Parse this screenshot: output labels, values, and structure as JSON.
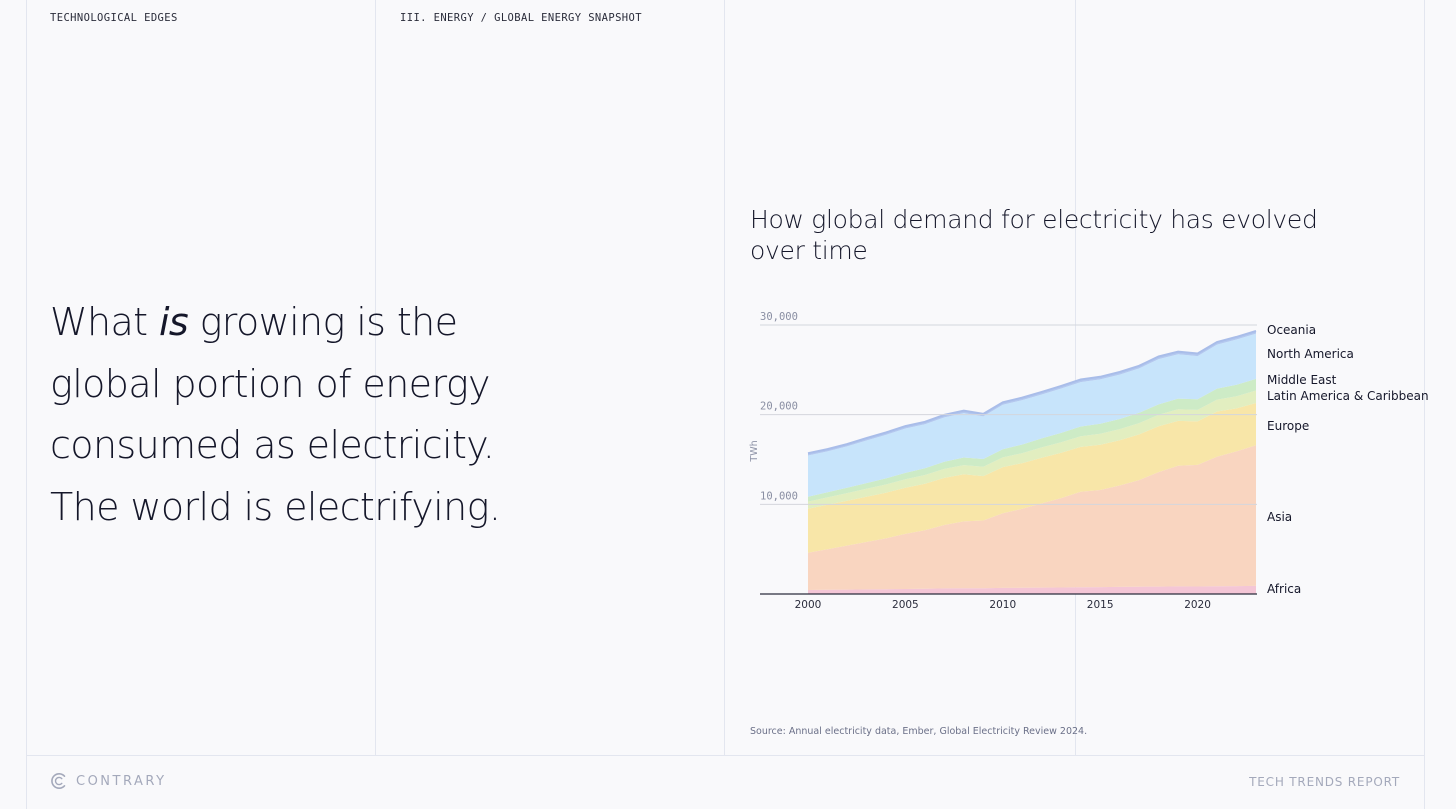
{
  "header": {
    "left": "TECHNOLOGICAL EDGES",
    "section": "III. ENERGY / GLOBAL ENERGY SNAPSHOT"
  },
  "headline": {
    "part1": "What ",
    "emph": "is",
    "part2": " growing is the global portion of energy consumed as electricity. The world is electrifying."
  },
  "source": "Source: Annual electricity data, Ember, Global Electricity Review 2024.",
  "footer": {
    "brand": "CONTRARY",
    "report": "TECH TRENDS REPORT"
  },
  "colors": {
    "background": "#f9f9fb",
    "text": "#15172a",
    "gridline": "#e3e6ef"
  },
  "chart_data": {
    "type": "area",
    "stacked": true,
    "title": "How global demand for electricity has evolved over time",
    "ylabel": "TWh",
    "xlabel": "",
    "ylim": [
      0,
      30000
    ],
    "xlim": [
      2000,
      2023
    ],
    "yticks": [
      10000,
      20000,
      30000
    ],
    "ytick_labels": [
      "10,000",
      "20,000",
      "30,000"
    ],
    "xticks": [
      2000,
      2005,
      2010,
      2015,
      2020
    ],
    "xtick_labels": [
      "2000",
      "2005",
      "2010",
      "2015",
      "2020"
    ],
    "grid": true,
    "legend": "right-end labels",
    "x": [
      2000,
      2001,
      2002,
      2003,
      2004,
      2005,
      2006,
      2007,
      2008,
      2009,
      2010,
      2011,
      2012,
      2013,
      2014,
      2015,
      2016,
      2017,
      2018,
      2019,
      2020,
      2021,
      2022,
      2023
    ],
    "series": [
      {
        "name": "Africa",
        "color": "#f4c6d6",
        "values": [
          450,
          470,
          490,
          510,
          540,
          560,
          590,
          620,
          640,
          640,
          680,
          690,
          710,
          730,
          750,
          770,
          790,
          810,
          830,
          850,
          840,
          870,
          880,
          900
        ]
      },
      {
        "name": "Asia",
        "color": "#f9d5c0",
        "values": [
          4150,
          4530,
          4910,
          5290,
          5660,
          6140,
          6510,
          7080,
          7460,
          7560,
          8320,
          8810,
          9390,
          9970,
          10650,
          10830,
          11310,
          11890,
          12770,
          13450,
          13560,
          14430,
          15020,
          15700
        ]
      },
      {
        "name": "Europe",
        "color": "#f8e6a8",
        "values": [
          4900,
          4950,
          5000,
          5050,
          5100,
          5150,
          5200,
          5250,
          5250,
          4950,
          5150,
          5100,
          5100,
          5050,
          5000,
          5050,
          5050,
          5100,
          5100,
          5000,
          4850,
          5050,
          4800,
          4700
        ]
      },
      {
        "name": "Latin America & Caribbean",
        "color": "#e2eec0",
        "values": [
          800,
          820,
          850,
          880,
          910,
          940,
          970,
          1000,
          1030,
          1040,
          1080,
          1110,
          1150,
          1180,
          1200,
          1220,
          1240,
          1260,
          1280,
          1300,
          1280,
          1330,
          1360,
          1390
        ]
      },
      {
        "name": "Middle East",
        "color": "#cdebc6",
        "values": [
          550,
          580,
          610,
          640,
          680,
          720,
          760,
          800,
          840,
          870,
          920,
          960,
          1000,
          1040,
          1080,
          1110,
          1130,
          1150,
          1170,
          1190,
          1200,
          1230,
          1270,
          1300
        ]
      },
      {
        "name": "North America",
        "color": "#c7e4fb",
        "values": [
          4600,
          4550,
          4600,
          4750,
          4850,
          4950,
          4900,
          4950,
          4950,
          4750,
          4950,
          4950,
          4900,
          4950,
          4950,
          4950,
          4950,
          4950,
          5050,
          4950,
          4800,
          4900,
          5050,
          5050
        ]
      },
      {
        "name": "Oceania",
        "color": "#b3c8ef",
        "values": [
          250,
          255,
          260,
          265,
          268,
          270,
          272,
          275,
          278,
          280,
          282,
          284,
          285,
          285,
          287,
          288,
          290,
          291,
          292,
          293,
          290,
          292,
          293,
          295
        ]
      }
    ]
  }
}
